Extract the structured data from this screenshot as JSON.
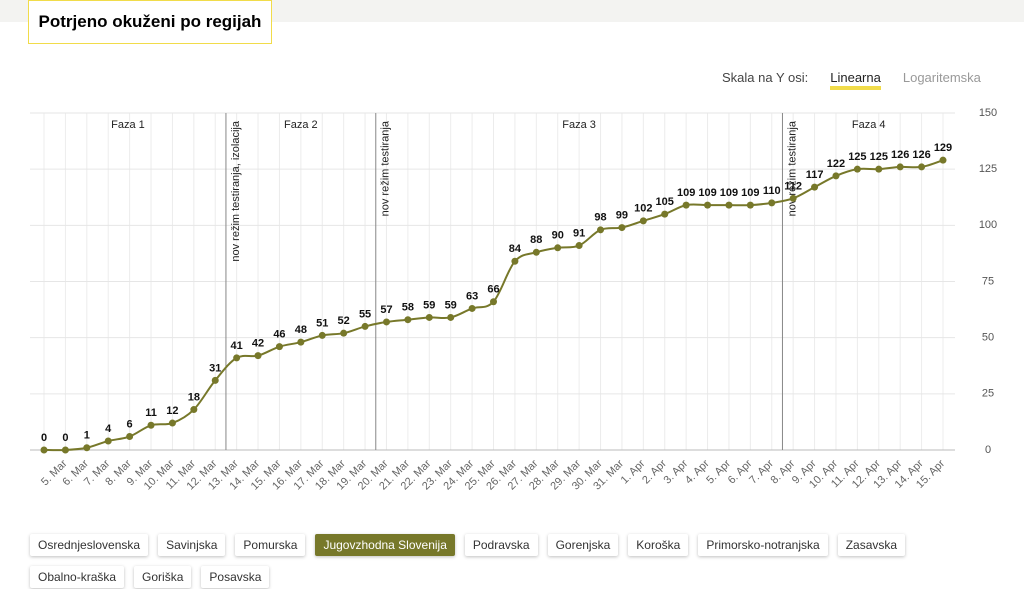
{
  "header": {
    "title": "Potrjeno okuženi po regijah"
  },
  "scale_toggle": {
    "label": "Skala na Y osi:",
    "options": [
      "Linearna",
      "Logaritemska"
    ],
    "selected": 0
  },
  "regions": {
    "options": [
      "Osrednjeslovenska",
      "Savinjska",
      "Pomurska",
      "Jugovzhodna Slovenija",
      "Podravska",
      "Gorenjska",
      "Koroška",
      "Primorsko-notranjska",
      "Zasavska",
      "Obalno-kraška",
      "Goriška",
      "Posavska"
    ],
    "selected": 3
  },
  "chart_data": {
    "type": "line",
    "categories": [
      null,
      "5. Mar",
      "6. Mar",
      "7. Mar",
      "8. Mar",
      "9. Mar",
      "10. Mar",
      "11. Mar",
      "12. Mar",
      "13. Mar",
      "14. Mar",
      "15. Mar",
      "16. Mar",
      "17. Mar",
      "18. Mar",
      "19. Mar",
      "20. Mar",
      "21. Mar",
      "22. Mar",
      "23. Mar",
      "24. Mar",
      "25. Mar",
      "26. Mar",
      "27. Mar",
      "28. Mar",
      "29. Mar",
      "30. Mar",
      "31. Mar",
      "1. Apr",
      "2. Apr",
      "3. Apr",
      "4. Apr",
      "5. Apr",
      "6. Apr",
      "7. Apr",
      "8. Apr",
      "9. Apr",
      "10. Apr",
      "11. Apr",
      "12. Apr",
      "13. Apr",
      "14. Apr",
      "15. Apr"
    ],
    "series": [
      {
        "color": "#77782a",
        "values": [
          0,
          0,
          1,
          4,
          6,
          11,
          12,
          18,
          31,
          41,
          42,
          46,
          48,
          51,
          52,
          55,
          57,
          58,
          59,
          59,
          63,
          66,
          84,
          88,
          90,
          91,
          98,
          99,
          102,
          105,
          109,
          109,
          109,
          109,
          110,
          112,
          117,
          122,
          125,
          125,
          126,
          126,
          129
        ]
      }
    ],
    "ylim": [
      0,
      150
    ],
    "yticks": [
      0,
      25,
      50,
      75,
      100,
      125,
      150
    ],
    "grid": true,
    "y_axis_side": "right",
    "annotations": [
      {
        "after": "12. Mar",
        "text": "nov režim testiranja, izolacija"
      },
      {
        "after": "19. Mar",
        "text": "nov režim testiranja"
      },
      {
        "after": "7. Apr",
        "text": "nov režim testiranja"
      }
    ],
    "phases": [
      "Faza 1",
      "Faza 2",
      "Faza 3",
      "Faza 4"
    ]
  }
}
